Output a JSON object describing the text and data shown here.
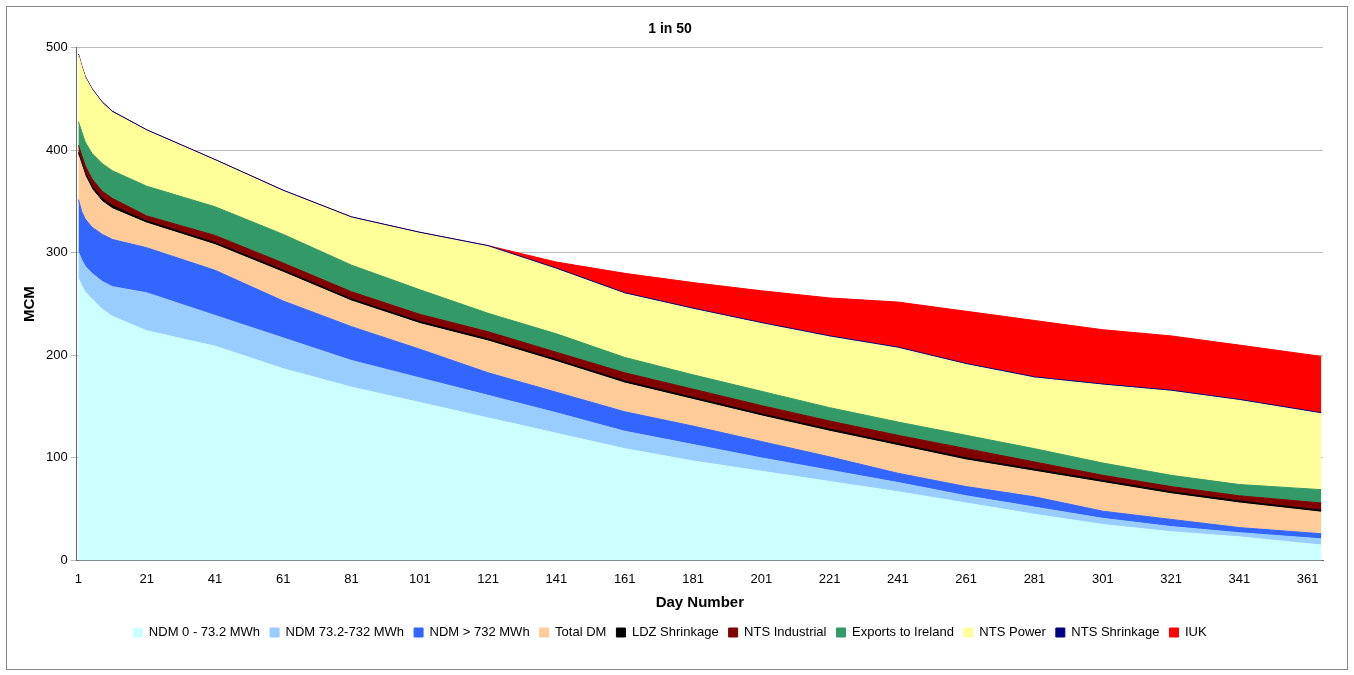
{
  "chart_data": {
    "type": "area",
    "title": "1 in 50",
    "xlabel": "Day Number",
    "ylabel": "MCM",
    "stacked": true,
    "grid": "y",
    "legend": "bottom",
    "x": [
      1,
      2,
      3,
      5,
      8,
      11,
      21,
      41,
      61,
      81,
      101,
      121,
      141,
      161,
      181,
      201,
      221,
      241,
      261,
      281,
      301,
      321,
      341,
      365
    ],
    "xlim": [
      0.5,
      365.5
    ],
    "xticks": [
      1,
      21,
      41,
      61,
      81,
      101,
      121,
      141,
      161,
      181,
      201,
      221,
      241,
      261,
      281,
      301,
      321,
      341,
      361
    ],
    "ylim": [
      0,
      500
    ],
    "yticks": [
      0,
      100,
      200,
      300,
      400,
      500
    ],
    "series": [
      {
        "name": "NDM 0 - 73.2 MWh",
        "color": "#ccffff",
        "values": [
          275,
          268,
          262,
          255,
          245,
          238,
          224,
          209,
          187,
          169,
          154,
          139,
          124,
          109,
          97,
          87,
          77,
          67,
          56,
          45,
          35,
          28,
          23,
          15
        ]
      },
      {
        "name": "NDM 73.2-732 MWh",
        "color": "#99ccff",
        "values": [
          26,
          25,
          25,
          25,
          27,
          29,
          37,
          30,
          30,
          26,
          24,
          22,
          20,
          17,
          16,
          13,
          11,
          9,
          7,
          7,
          6,
          5,
          4,
          6
        ]
      },
      {
        "name": "NDM > 732 MWh",
        "color": "#3366ff",
        "values": [
          51,
          47,
          46,
          45,
          46,
          46,
          44,
          44,
          36,
          33,
          28,
          22,
          20,
          19,
          18,
          16,
          13,
          9,
          9,
          10,
          7,
          7,
          5,
          5
        ]
      },
      {
        "name": "Total DM",
        "color": "#ffcc99",
        "values": [
          43,
          45,
          42,
          37,
          32,
          30,
          24,
          25,
          28,
          25,
          25,
          31,
          30,
          28,
          26,
          25,
          25,
          27,
          26,
          25,
          28,
          25,
          24,
          21
        ]
      },
      {
        "name": "LDZ Shrinkage",
        "color": "#000000",
        "values": [
          3,
          3,
          3,
          3,
          3,
          3,
          2,
          2,
          2,
          2,
          2,
          2,
          2,
          2,
          2,
          2,
          2,
          2,
          2,
          2,
          2,
          2,
          2,
          2
        ]
      },
      {
        "name": "NTS Industrial",
        "color": "#800000",
        "values": [
          7,
          7,
          7,
          7,
          7,
          7,
          5,
          7,
          7,
          7,
          7,
          7,
          7,
          8,
          8,
          8,
          8,
          8,
          9,
          7,
          5,
          5,
          5,
          7
        ]
      },
      {
        "name": "Exports to Ireland",
        "color": "#339966",
        "values": [
          23,
          23,
          23,
          25,
          27,
          27,
          29,
          28,
          28,
          26,
          24,
          18,
          18,
          15,
          14,
          14,
          13,
          13,
          13,
          13,
          12,
          11,
          11,
          13
        ]
      },
      {
        "name": "NTS Power",
        "color": "#ffff99",
        "values": [
          65,
          63,
          63,
          62,
          59,
          57,
          54,
          45,
          42,
          46,
          55,
          65,
          63,
          62,
          64,
          66,
          69,
          72,
          69,
          69,
          76,
          82,
          82,
          74
        ]
      },
      {
        "name": "NTS Shrinkage",
        "color": "#000080",
        "values": [
          1,
          1,
          1,
          1,
          1,
          1,
          1,
          1,
          1,
          1,
          1,
          1,
          1,
          1,
          1,
          1,
          1,
          1,
          1,
          1,
          1,
          1,
          1,
          1
        ]
      },
      {
        "name": "IUK",
        "color": "#ff0000",
        "values": [
          0,
          0,
          0,
          0,
          0,
          0,
          0,
          0,
          0,
          0,
          0,
          0,
          6,
          19,
          25,
          31,
          37,
          44,
          51,
          55,
          53,
          53,
          53,
          55
        ]
      }
    ]
  }
}
